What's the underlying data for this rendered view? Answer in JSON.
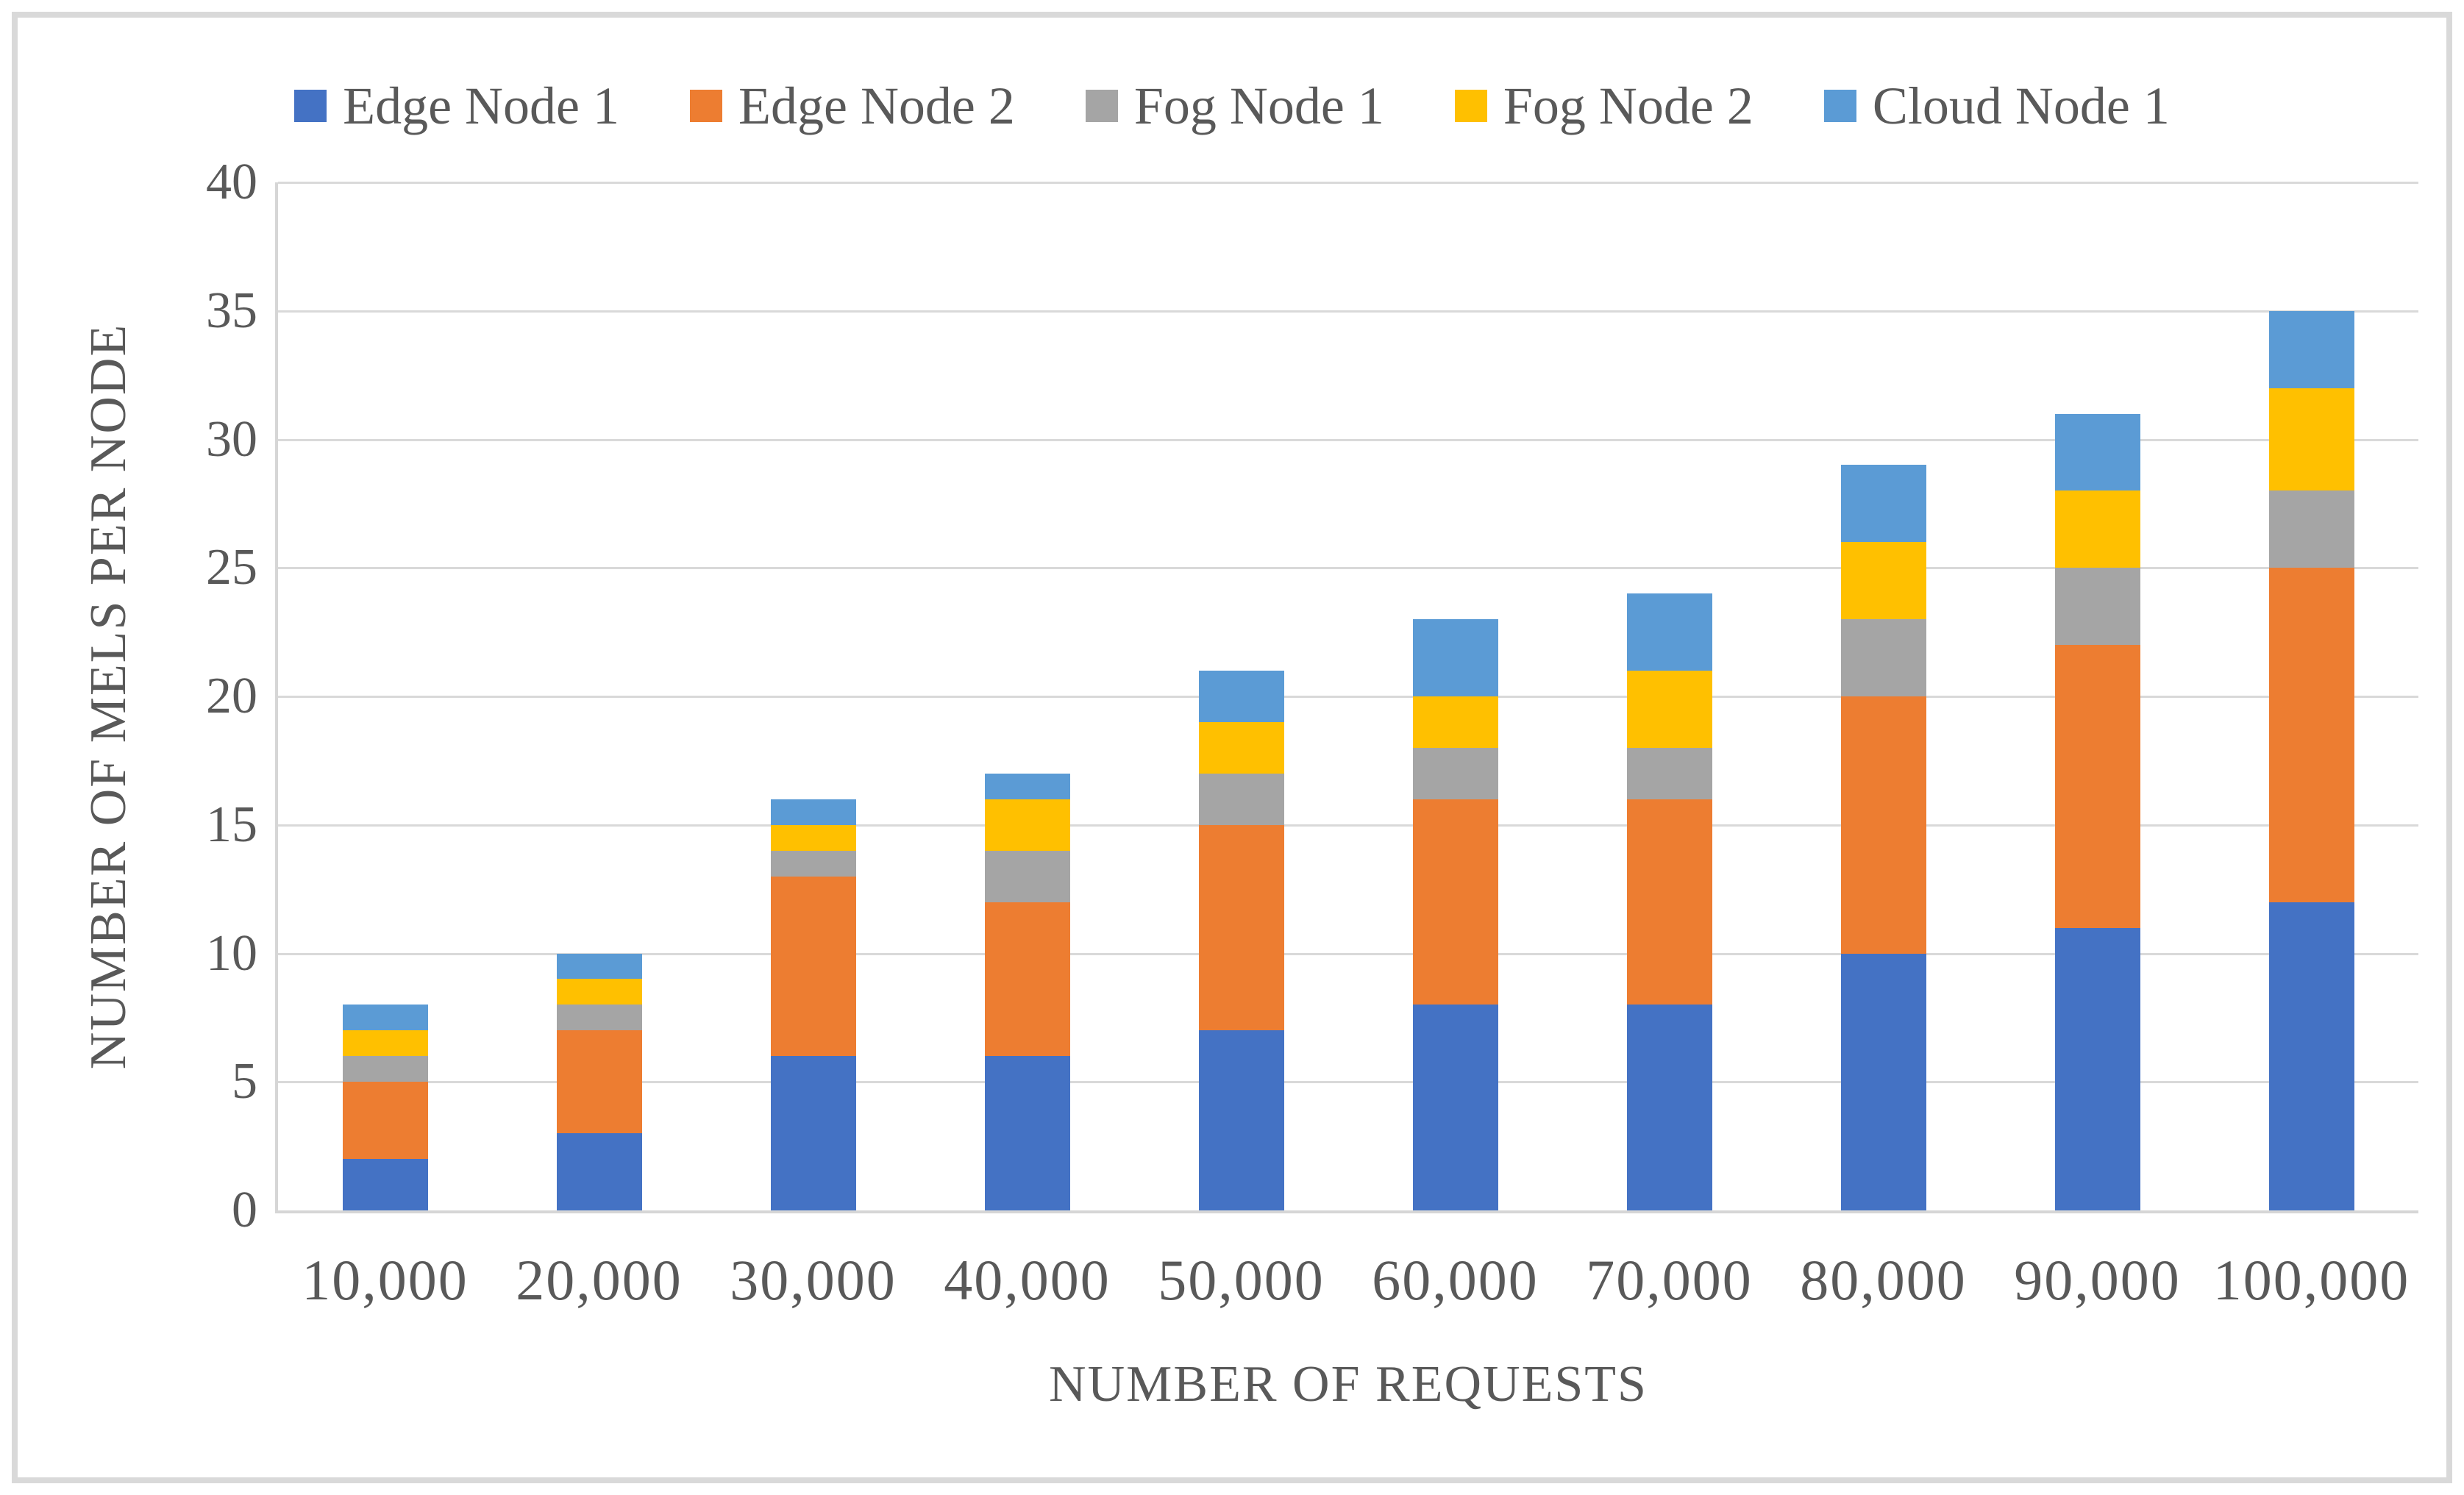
{
  "figure": {
    "background": "#FFFFFF",
    "border_color": "#D9D9D9",
    "text_color": "#595959",
    "gridline_color": "#D9D9D9"
  },
  "chart_data": {
    "type": "bar",
    "stacked": true,
    "xlabel": "NUMBER OF REQUESTS",
    "ylabel": "NUMBER OF MELS PER NODE",
    "categories": [
      "10,000",
      "20,000",
      "30,000",
      "40,000",
      "50,000",
      "60,000",
      "70,000",
      "80,000",
      "90,000",
      "100,000"
    ],
    "series": [
      {
        "name": "Edge Node 1",
        "color": "#4472C4",
        "values": [
          2,
          3,
          6,
          6,
          7,
          8,
          8,
          10,
          11,
          12
        ]
      },
      {
        "name": "Edge Node 2",
        "color": "#ED7D31",
        "values": [
          3,
          4,
          7,
          6,
          8,
          8,
          8,
          10,
          11,
          13
        ]
      },
      {
        "name": "Fog Node 1",
        "color": "#A5A5A5",
        "values": [
          1,
          1,
          1,
          2,
          2,
          2,
          2,
          3,
          3,
          3
        ]
      },
      {
        "name": "Fog Node 2",
        "color": "#FFC000",
        "values": [
          1,
          1,
          1,
          2,
          2,
          2,
          3,
          3,
          3,
          4
        ]
      },
      {
        "name": "Cloud Node 1",
        "color": "#5B9BD5",
        "values": [
          1,
          1,
          1,
          1,
          2,
          3,
          3,
          3,
          3,
          3
        ]
      }
    ],
    "totals": [
      8,
      10,
      16,
      17,
      21,
      23,
      24,
      29,
      31,
      35
    ],
    "ylim": [
      0,
      40
    ],
    "ytick_step": 5,
    "yticks": [
      "0",
      "5",
      "10",
      "15",
      "20",
      "25",
      "30",
      "35",
      "40"
    ],
    "grid": "horizontal",
    "legend_position": "top"
  }
}
